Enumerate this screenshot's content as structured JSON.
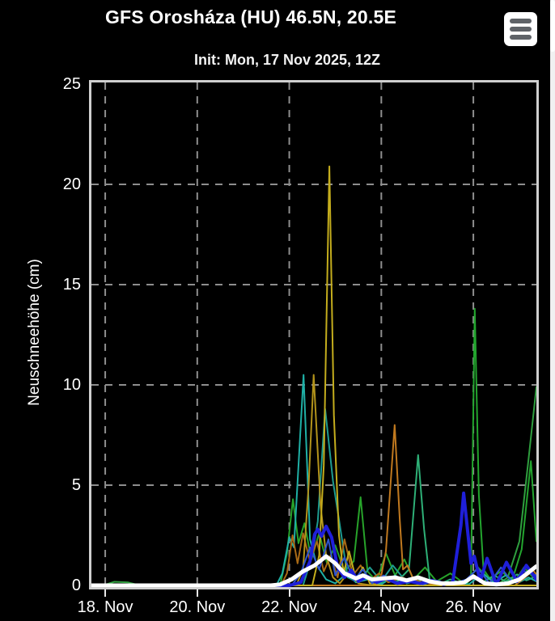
{
  "header": {
    "menu_icon": "hamburger-icon"
  },
  "colors": {
    "background": "#000000",
    "text": "#ffffff",
    "grid": "#8e8e8e",
    "frame": "#cfcfcf",
    "menu_bars": "#5f6368",
    "scrollbar": "#f1f1f1"
  },
  "chart_data": {
    "type": "line",
    "title": "GFS Orosháza (HU) 46.5N, 20.5E",
    "subtitle": "Init: Mon, 17 Nov 2025, 12Z",
    "ylabel": "Neuschneehöhe (cm)",
    "xlabel": "",
    "ylim": [
      0,
      25
    ],
    "yticks": [
      0,
      5,
      10,
      15,
      20,
      25
    ],
    "xlim_days": [
      17.7,
      27.37
    ],
    "xticks": [
      {
        "day": 18,
        "label": "18. Nov"
      },
      {
        "day": 20,
        "label": "20. Nov"
      },
      {
        "day": 22,
        "label": "22. Nov"
      },
      {
        "day": 24,
        "label": "24. Nov"
      },
      {
        "day": 26,
        "label": "26. Nov"
      }
    ],
    "grid": {
      "on": true,
      "color": "#8e8e8e",
      "dash": [
        9,
        8
      ]
    },
    "legend": "none",
    "series": [
      {
        "name": "member-baseline-green",
        "color": "#1e8f1e",
        "width": 2,
        "points": [
          [
            17.7,
            0
          ],
          [
            27.37,
            0
          ]
        ]
      },
      {
        "name": "member-green-1",
        "color": "#27a32a",
        "width": 2,
        "points": [
          [
            17.7,
            0
          ],
          [
            21.8,
            0
          ],
          [
            21.95,
            1.6
          ],
          [
            22.08,
            4.3
          ],
          [
            22.2,
            2.1
          ],
          [
            22.33,
            3.1
          ],
          [
            22.48,
            1.3
          ],
          [
            22.65,
            2.6
          ],
          [
            22.82,
            1.1
          ],
          [
            23.0,
            2.0
          ],
          [
            23.2,
            0.7
          ],
          [
            23.4,
            1.2
          ],
          [
            23.55,
            4.4
          ],
          [
            23.7,
            0.7
          ],
          [
            23.9,
            0.2
          ],
          [
            24.1,
            1.6
          ],
          [
            24.3,
            0.5
          ],
          [
            24.5,
            1.3
          ],
          [
            24.7,
            0.3
          ],
          [
            24.95,
            0.9
          ],
          [
            25.2,
            0.2
          ],
          [
            25.5,
            0.6
          ],
          [
            25.8,
            0.1
          ],
          [
            26.1,
            0.9
          ],
          [
            26.35,
            0.3
          ],
          [
            26.6,
            0.7
          ],
          [
            26.9,
            0.2
          ],
          [
            27.1,
            0.9
          ],
          [
            27.3,
            0.4
          ],
          [
            27.37,
            0.6
          ]
        ]
      },
      {
        "name": "member-green-2",
        "color": "#23a52e",
        "width": 2,
        "points": [
          [
            17.7,
            0
          ],
          [
            25.85,
            0
          ],
          [
            25.95,
            0.5
          ],
          [
            26.03,
            13.8
          ],
          [
            26.12,
            4.5
          ],
          [
            26.22,
            0.8
          ],
          [
            26.4,
            0.2
          ],
          [
            26.6,
            0.05
          ],
          [
            26.85,
            0.3
          ],
          [
            27.05,
            1.8
          ],
          [
            27.25,
            6.2
          ],
          [
            27.37,
            2.2
          ]
        ]
      },
      {
        "name": "member-green-3",
        "color": "#2f9f3f",
        "width": 2,
        "points": [
          [
            17.7,
            0
          ],
          [
            17.95,
            0
          ],
          [
            18.2,
            0.18
          ],
          [
            18.5,
            0.15
          ],
          [
            18.75,
            0
          ],
          [
            26.5,
            0
          ],
          [
            26.75,
            0.4
          ],
          [
            27.0,
            2.2
          ],
          [
            27.2,
            6.3
          ],
          [
            27.37,
            9.9
          ]
        ]
      },
      {
        "name": "member-springgreen",
        "color": "#2eb077",
        "width": 2,
        "points": [
          [
            17.7,
            0
          ],
          [
            23.9,
            0
          ],
          [
            24.1,
            0.3
          ],
          [
            24.35,
            0.2
          ],
          [
            24.6,
            0.8
          ],
          [
            24.8,
            6.5
          ],
          [
            24.93,
            2.8
          ],
          [
            25.05,
            0.3
          ],
          [
            25.25,
            0.05
          ],
          [
            25.5,
            0.3
          ],
          [
            25.75,
            0.1
          ],
          [
            26.0,
            0.4
          ],
          [
            26.2,
            0.15
          ],
          [
            26.45,
            0.5
          ],
          [
            26.7,
            0.2
          ],
          [
            26.95,
            0.55
          ],
          [
            27.15,
            0.25
          ],
          [
            27.37,
            0.45
          ]
        ]
      },
      {
        "name": "member-teal-1",
        "color": "#1fb0a6",
        "width": 2,
        "points": [
          [
            17.7,
            0
          ],
          [
            21.72,
            0
          ],
          [
            21.85,
            0.6
          ],
          [
            22.0,
            2.4
          ],
          [
            22.1,
            1.9
          ],
          [
            22.31,
            10.5
          ],
          [
            22.45,
            2.3
          ],
          [
            22.6,
            1.0
          ],
          [
            22.8,
            0.3
          ],
          [
            23.0,
            0.1
          ],
          [
            23.25,
            0.6
          ],
          [
            23.45,
            0.15
          ],
          [
            23.7,
            0.3
          ],
          [
            24.0,
            0.05
          ],
          [
            24.3,
            0.5
          ],
          [
            24.55,
            0.1
          ],
          [
            24.9,
            0.3
          ],
          [
            25.2,
            0.05
          ],
          [
            25.6,
            0.2
          ],
          [
            25.9,
            0.05
          ],
          [
            26.2,
            0.6
          ],
          [
            26.45,
            0.15
          ],
          [
            26.7,
            0.5
          ],
          [
            26.95,
            0.1
          ],
          [
            27.2,
            0.4
          ],
          [
            27.37,
            0.2
          ]
        ]
      },
      {
        "name": "member-teal-2",
        "color": "#1e9c90",
        "width": 2,
        "points": [
          [
            17.7,
            0
          ],
          [
            22.3,
            0
          ],
          [
            22.5,
            1.5
          ],
          [
            22.62,
            3.2
          ],
          [
            22.78,
            8.8
          ],
          [
            22.95,
            5.2
          ],
          [
            23.1,
            3.0
          ],
          [
            23.27,
            0.4
          ],
          [
            23.5,
            0.15
          ],
          [
            23.75,
            0.9
          ],
          [
            24.0,
            0.2
          ],
          [
            24.25,
            1.0
          ],
          [
            24.5,
            0.3
          ],
          [
            24.75,
            0.1
          ],
          [
            25.0,
            0
          ],
          [
            27.37,
            0
          ]
        ]
      },
      {
        "name": "member-orange-1",
        "color": "#c0791f",
        "width": 2,
        "points": [
          [
            17.7,
            0
          ],
          [
            23.85,
            0
          ],
          [
            24.0,
            0.5
          ],
          [
            24.1,
            1.7
          ],
          [
            24.29,
            8.0
          ],
          [
            24.4,
            3.3
          ],
          [
            24.47,
            0.8
          ],
          [
            24.57,
            1.0
          ],
          [
            24.7,
            0.3
          ],
          [
            24.9,
            0.15
          ],
          [
            25.15,
            0.05
          ],
          [
            25.4,
            0
          ],
          [
            26.9,
            0
          ],
          [
            27.1,
            0.35
          ],
          [
            27.3,
            0.75
          ],
          [
            27.37,
            0.55
          ]
        ]
      },
      {
        "name": "member-orange-2",
        "color": "#a96a16",
        "width": 2,
        "points": [
          [
            17.7,
            0
          ],
          [
            21.82,
            0
          ],
          [
            21.95,
            0.6
          ],
          [
            22.07,
            2.5
          ],
          [
            22.18,
            1.1
          ],
          [
            22.3,
            2.6
          ],
          [
            22.45,
            1.2
          ],
          [
            22.6,
            2.2
          ],
          [
            22.75,
            0.7
          ],
          [
            22.9,
            1.5
          ],
          [
            23.05,
            0.4
          ],
          [
            23.2,
            2.3
          ],
          [
            23.38,
            0.5
          ],
          [
            23.55,
            1.0
          ],
          [
            23.75,
            0.25
          ],
          [
            23.95,
            0.6
          ],
          [
            24.15,
            0.15
          ],
          [
            24.45,
            0.4
          ],
          [
            24.75,
            0.1
          ],
          [
            25.05,
            0.2
          ],
          [
            25.35,
            0
          ],
          [
            27.37,
            0
          ]
        ]
      },
      {
        "name": "member-gold",
        "color": "#b2931b",
        "width": 2,
        "points": [
          [
            17.7,
            0
          ],
          [
            22.15,
            0
          ],
          [
            22.3,
            0.8
          ],
          [
            22.42,
            5.0
          ],
          [
            22.53,
            10.5
          ],
          [
            22.68,
            4.0
          ],
          [
            22.8,
            1.5
          ],
          [
            22.95,
            0.4
          ],
          [
            23.1,
            0.1
          ],
          [
            23.3,
            0.7
          ],
          [
            23.5,
            0.1
          ],
          [
            23.8,
            0
          ],
          [
            27.37,
            0
          ]
        ]
      },
      {
        "name": "member-yellow-peak21",
        "color": "#c4ad1d",
        "width": 2,
        "points": [
          [
            17.7,
            0
          ],
          [
            22.5,
            0
          ],
          [
            22.65,
            1.5
          ],
          [
            22.75,
            6.0
          ],
          [
            22.87,
            20.9
          ],
          [
            22.97,
            8.5
          ],
          [
            23.08,
            2.5
          ],
          [
            23.18,
            0.6
          ],
          [
            23.3,
            1.7
          ],
          [
            23.45,
            0.3
          ],
          [
            23.6,
            0.9
          ],
          [
            23.75,
            0.1
          ],
          [
            24.0,
            0
          ],
          [
            27.37,
            0
          ]
        ]
      },
      {
        "name": "member-blue-thin",
        "color": "#2f55cf",
        "width": 2,
        "points": [
          [
            17.7,
            0
          ],
          [
            22.05,
            0
          ],
          [
            22.25,
            0.6
          ],
          [
            22.45,
            1.9
          ],
          [
            22.65,
            0.8
          ],
          [
            22.85,
            2.3
          ],
          [
            23.0,
            0.5
          ],
          [
            23.2,
            1.4
          ],
          [
            23.4,
            0.25
          ],
          [
            23.6,
            0.8
          ],
          [
            23.8,
            0.1
          ],
          [
            24.05,
            0.5
          ],
          [
            24.3,
            0.1
          ],
          [
            24.6,
            0.35
          ],
          [
            24.9,
            0.05
          ],
          [
            25.2,
            0.25
          ],
          [
            25.5,
            0.05
          ],
          [
            25.85,
            0.3
          ],
          [
            26.1,
            0.85
          ],
          [
            26.35,
            0.1
          ],
          [
            26.6,
            0.9
          ],
          [
            26.85,
            0.15
          ],
          [
            27.1,
            0.7
          ],
          [
            27.37,
            0.5
          ]
        ]
      },
      {
        "name": "control-run-blue",
        "color": "#1f1fd9",
        "width": 4,
        "points": [
          [
            17.7,
            0
          ],
          [
            22.0,
            0
          ],
          [
            22.25,
            0.15
          ],
          [
            22.45,
            1.2
          ],
          [
            22.55,
            2.55
          ],
          [
            22.62,
            2.8
          ],
          [
            22.7,
            2.45
          ],
          [
            22.8,
            2.95
          ],
          [
            22.92,
            2.4
          ],
          [
            23.05,
            0.9
          ],
          [
            23.2,
            0.4
          ],
          [
            23.35,
            0.75
          ],
          [
            23.5,
            0.2
          ],
          [
            23.7,
            0.45
          ],
          [
            23.9,
            0.15
          ],
          [
            24.1,
            0.35
          ],
          [
            24.35,
            0.1
          ],
          [
            24.6,
            0.2
          ],
          [
            24.85,
            0.1
          ],
          [
            25.1,
            0.25
          ],
          [
            25.35,
            0.05
          ],
          [
            25.55,
            0.15
          ],
          [
            25.73,
            3.0
          ],
          [
            25.79,
            4.6
          ],
          [
            25.95,
            1.1
          ],
          [
            26.02,
            1.45
          ],
          [
            26.15,
            0.2
          ],
          [
            26.3,
            1.35
          ],
          [
            26.5,
            0.05
          ],
          [
            26.72,
            1.15
          ],
          [
            26.95,
            0.2
          ],
          [
            27.15,
            1.0
          ],
          [
            27.37,
            0.3
          ]
        ]
      },
      {
        "name": "ensemble-mean-white",
        "color": "#ffffff",
        "width": 5,
        "points": [
          [
            17.7,
            0
          ],
          [
            21.6,
            0
          ],
          [
            21.8,
            0.05
          ],
          [
            22.05,
            0.3
          ],
          [
            22.3,
            0.7
          ],
          [
            22.55,
            1.0
          ],
          [
            22.8,
            1.45
          ],
          [
            23.0,
            1.1
          ],
          [
            23.2,
            0.6
          ],
          [
            23.45,
            0.35
          ],
          [
            23.6,
            0.5
          ],
          [
            23.8,
            0.3
          ],
          [
            24.05,
            0.35
          ],
          [
            24.3,
            0.4
          ],
          [
            24.55,
            0.25
          ],
          [
            24.8,
            0.4
          ],
          [
            25.05,
            0.2
          ],
          [
            25.3,
            0.1
          ],
          [
            25.55,
            0.1
          ],
          [
            25.8,
            0.15
          ],
          [
            26.0,
            0.45
          ],
          [
            26.25,
            0.1
          ],
          [
            26.5,
            0.05
          ],
          [
            26.75,
            0.1
          ],
          [
            27.0,
            0.3
          ],
          [
            27.37,
            0.95
          ]
        ]
      }
    ]
  }
}
